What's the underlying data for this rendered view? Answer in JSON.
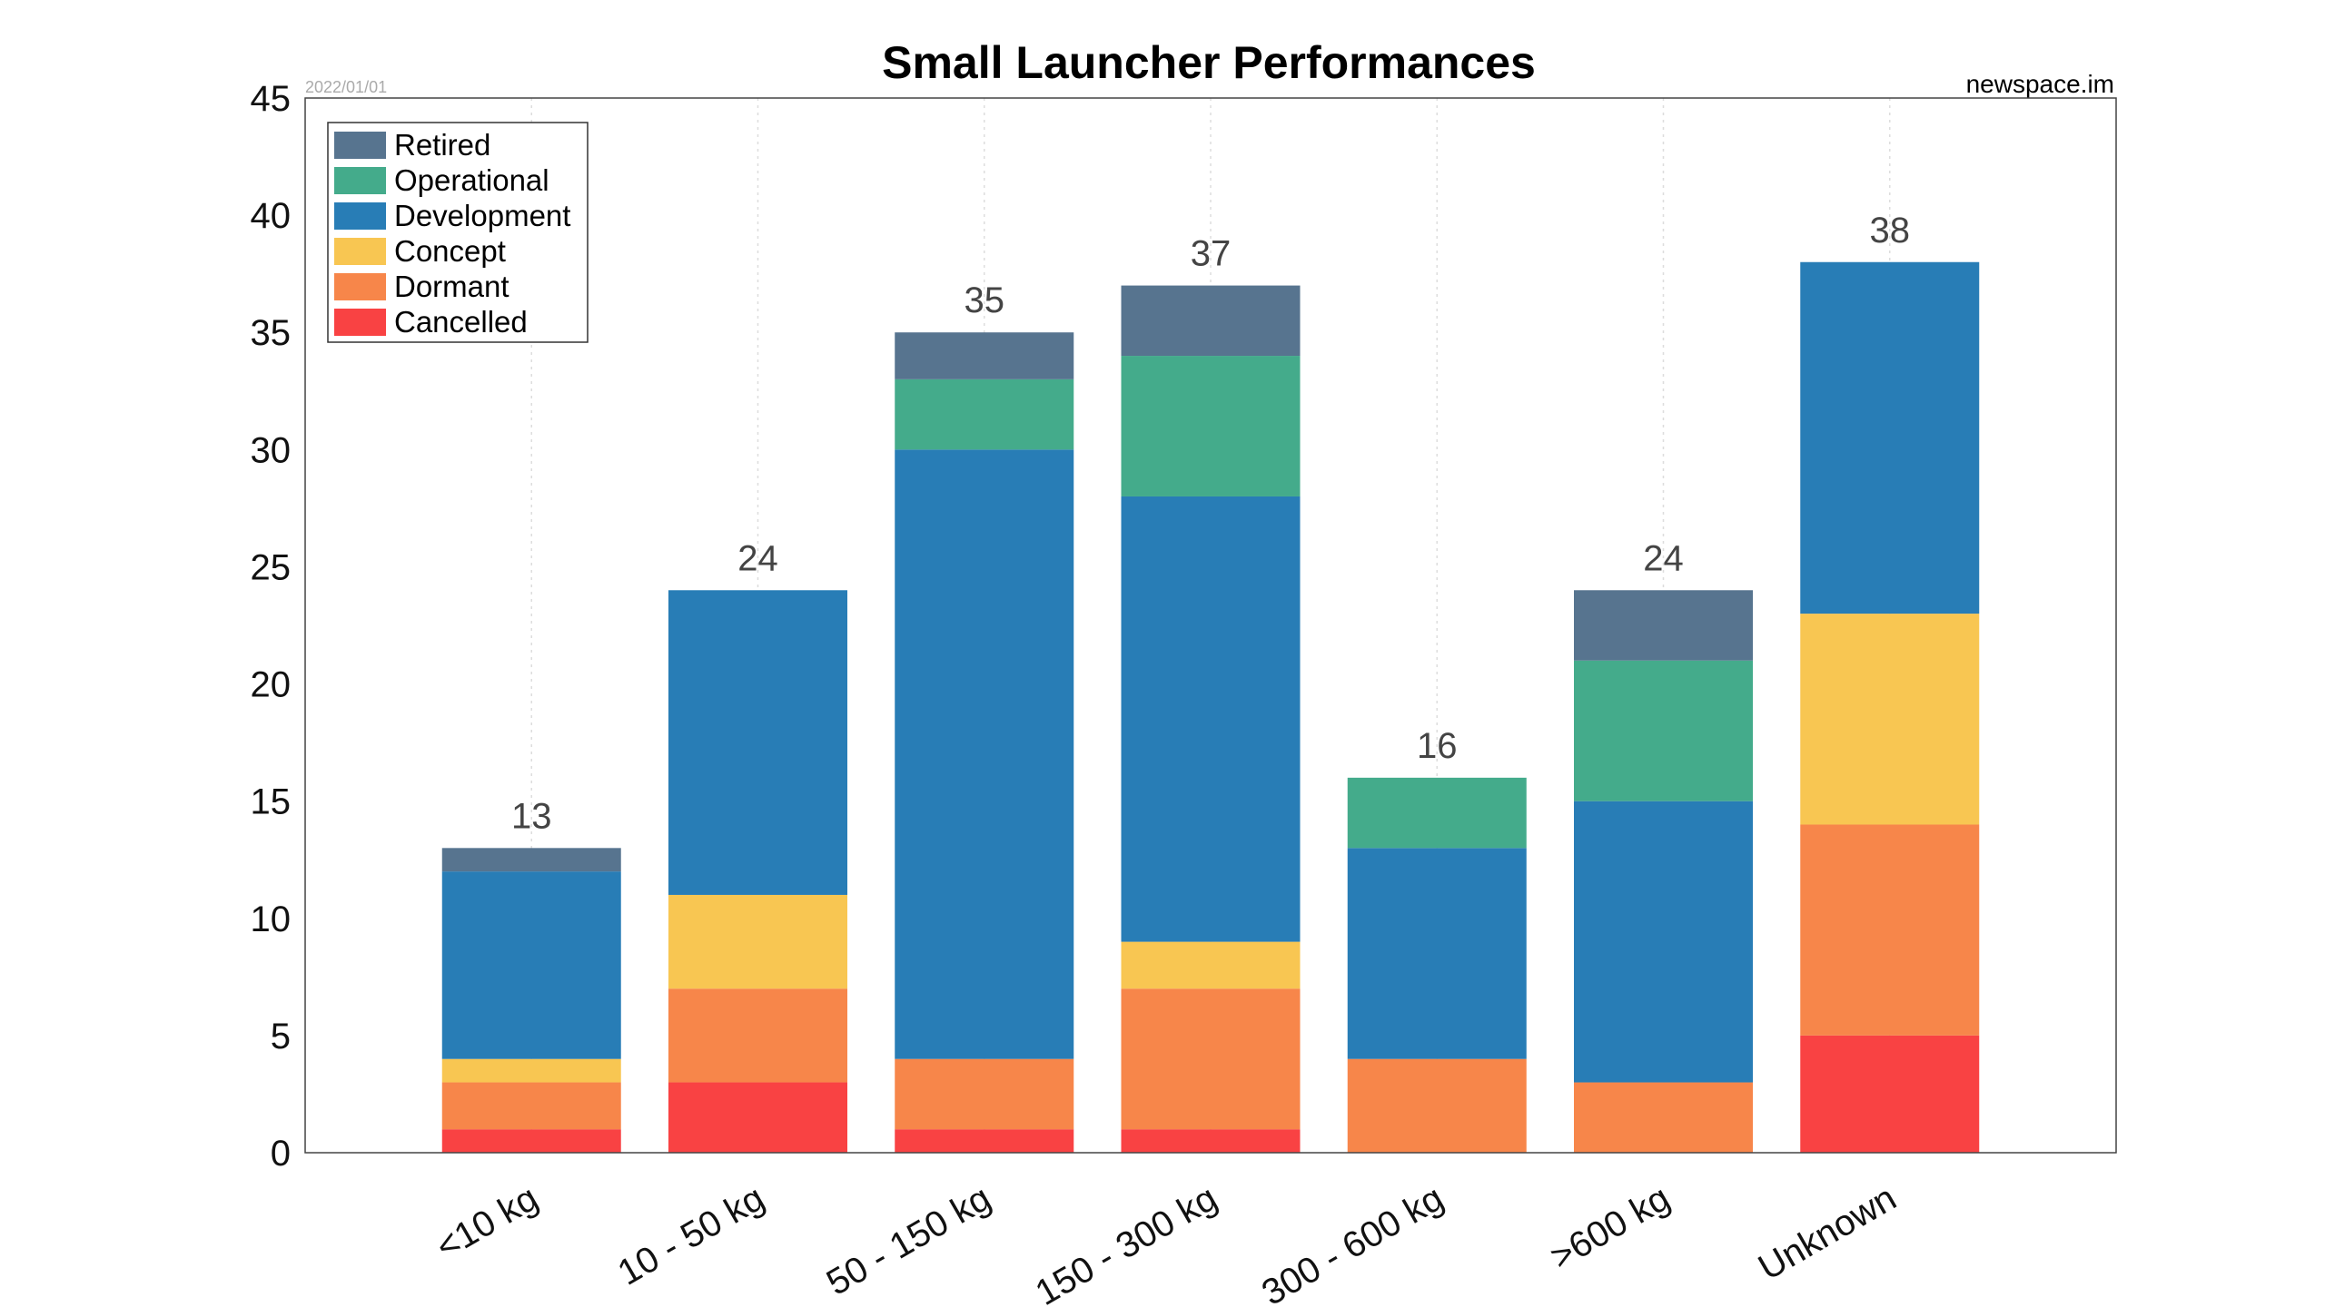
{
  "chart_data": {
    "type": "bar",
    "stacked": true,
    "title": "Small Launcher Performances",
    "date_note": "2022/01/01",
    "source_note": "newspace.im",
    "xlabel": "",
    "ylabel": "",
    "ylim": [
      0,
      45
    ],
    "yticks": [
      0,
      5,
      10,
      15,
      20,
      25,
      30,
      35,
      40,
      45
    ],
    "grid": "vertical dotted at categories",
    "legend_placement": "top-left",
    "categories": [
      "<10 kg",
      "10 - 50 kg",
      "50 - 150 kg",
      "150 - 300 kg",
      "300 - 600 kg",
      ">600 kg",
      "Unknown"
    ],
    "totals": [
      13,
      24,
      35,
      37,
      16,
      24,
      38
    ],
    "series": [
      {
        "name": "Cancelled",
        "color": "#f94243",
        "values": [
          1,
          3,
          1,
          1,
          0,
          0,
          5
        ]
      },
      {
        "name": "Dormant",
        "color": "#f7864a",
        "values": [
          2,
          4,
          3,
          6,
          4,
          3,
          9
        ]
      },
      {
        "name": "Concept",
        "color": "#f8c652",
        "values": [
          1,
          4,
          0,
          2,
          0,
          0,
          9
        ]
      },
      {
        "name": "Development",
        "color": "#287db6",
        "values": [
          8,
          13,
          26,
          19,
          9,
          12,
          15
        ]
      },
      {
        "name": "Operational",
        "color": "#44ab8b",
        "values": [
          0,
          0,
          3,
          6,
          3,
          6,
          0
        ]
      },
      {
        "name": "Retired",
        "color": "#57748f",
        "values": [
          1,
          0,
          2,
          3,
          0,
          3,
          0
        ]
      }
    ],
    "legend_order": [
      "Retired",
      "Operational",
      "Development",
      "Concept",
      "Dormant",
      "Cancelled"
    ]
  }
}
